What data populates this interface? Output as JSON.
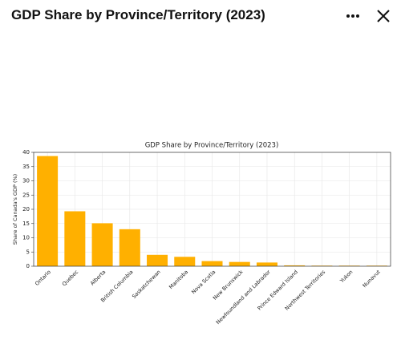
{
  "header": {
    "title": "GDP Share by Province/Territory (2023)"
  },
  "chart_data": {
    "type": "bar",
    "title": "GDP Share by Province/Territory (2023)",
    "y_label": "Share of Canada's GDP (%)",
    "categories": [
      "Ontario",
      "Quebec",
      "Alberta",
      "British Columbia",
      "Saskatchewan",
      "Manitoba",
      "Nova Scotia",
      "New Brunswick",
      "Newfoundland and Labrador",
      "Prince Edward Island",
      "Northwest Territories",
      "Yukon",
      "Nunavut"
    ],
    "values": [
      38.7,
      19.3,
      15.1,
      13.0,
      4.0,
      3.3,
      1.8,
      1.5,
      1.3,
      0.3,
      0.2,
      0.2,
      0.2
    ],
    "color": "#ffb000",
    "ylim": [
      0,
      40
    ],
    "yticks": [
      0,
      5,
      10,
      15,
      20,
      25,
      30,
      35,
      40
    ],
    "grid": true
  }
}
